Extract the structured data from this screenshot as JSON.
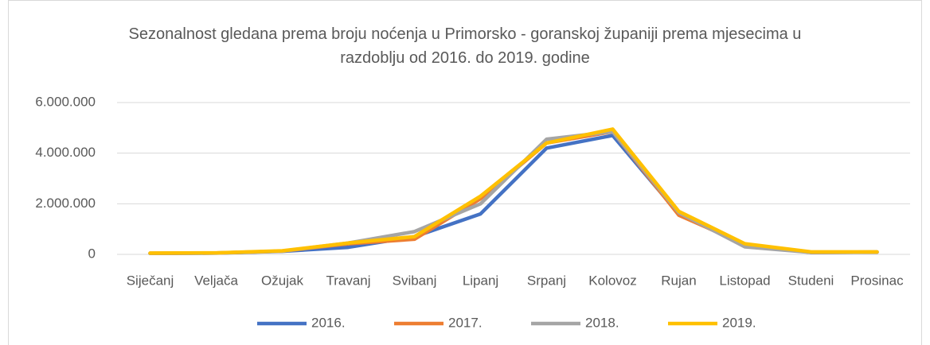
{
  "chart_data": {
    "type": "line",
    "title": "Sezonalnost gledana prema broju noćenja u Primorsko - goranskoj županiji prema mjesecima u razdoblju od 2016. do 2019. godine",
    "categories": [
      "Siječanj",
      "Veljača",
      "Ožujak",
      "Travanj",
      "Svibanj",
      "Lipanj",
      "Srpanj",
      "Kolovoz",
      "Rujan",
      "Listopad",
      "Studeni",
      "Prosinac"
    ],
    "series": [
      {
        "name": "2016.",
        "color": "#4472c4",
        "values": [
          40000,
          50000,
          120000,
          280000,
          700000,
          1600000,
          4200000,
          4700000,
          1600000,
          350000,
          80000,
          90000
        ]
      },
      {
        "name": "2017.",
        "color": "#ed7d31",
        "values": [
          45000,
          55000,
          130000,
          420000,
          600000,
          2200000,
          4400000,
          4850000,
          1550000,
          400000,
          80000,
          90000
        ]
      },
      {
        "name": "2018.",
        "color": "#a5a5a5",
        "values": [
          45000,
          55000,
          130000,
          450000,
          900000,
          2000000,
          4550000,
          4850000,
          1650000,
          300000,
          80000,
          90000
        ]
      },
      {
        "name": "2019.",
        "color": "#ffc000",
        "values": [
          50000,
          60000,
          140000,
          450000,
          700000,
          2300000,
          4400000,
          4950000,
          1700000,
          420000,
          100000,
          100000
        ]
      }
    ],
    "ylim": [
      0,
      6000000
    ],
    "yticks": [
      0,
      {
        "value": 2000000,
        "label": "2.000.000"
      },
      {
        "value": 4000000,
        "label": "4.000.000"
      },
      {
        "value": 6000000,
        "label": "6.000.000"
      }
    ],
    "grid": true,
    "legend": "bottom"
  }
}
